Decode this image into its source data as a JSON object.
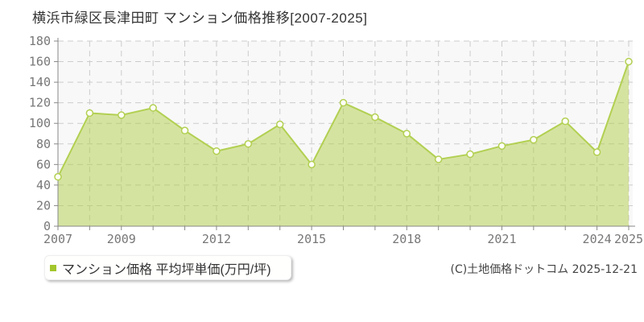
{
  "title": "横浜市緑区長津田町 マンション価格推移[2007-2025]",
  "legend": {
    "label": "マンション価格 平均坪単価(万円/坪)",
    "marker_color": "#a3c62c"
  },
  "copyright": "(C)土地価格ドットコム 2025-12-21",
  "chart_data": {
    "type": "area",
    "title": "横浜市緑区長津田町 マンション価格推移[2007-2025]",
    "x": [
      2007,
      2008,
      2009,
      2010,
      2011,
      2012,
      2013,
      2014,
      2015,
      2016,
      2017,
      2018,
      2019,
      2020,
      2021,
      2022,
      2023,
      2024,
      2025
    ],
    "values": [
      48,
      110,
      108,
      115,
      93,
      73,
      80,
      99,
      60,
      120,
      106,
      90,
      65,
      70,
      78,
      84,
      102,
      72,
      160
    ],
    "series_name": "マンション価格 平均坪単価(万円/坪)",
    "xlabel": "",
    "ylabel": "万円/坪",
    "ylim": [
      0,
      180
    ],
    "ytick_step": 20,
    "xtick_labels": [
      2007,
      2009,
      2012,
      2015,
      2018,
      2021,
      2024,
      2025
    ],
    "grid": true,
    "grid_style": "dashed",
    "legend_position": "bottom-left",
    "colors": {
      "line": "#b2d052",
      "fill": "rgba(177,206,74,0.5)",
      "marker_fill": "#fffef6",
      "grid": "#cccccc",
      "axis": "#888888",
      "plot_bg": "#f8f8f8",
      "tick_text": "#777777"
    }
  }
}
